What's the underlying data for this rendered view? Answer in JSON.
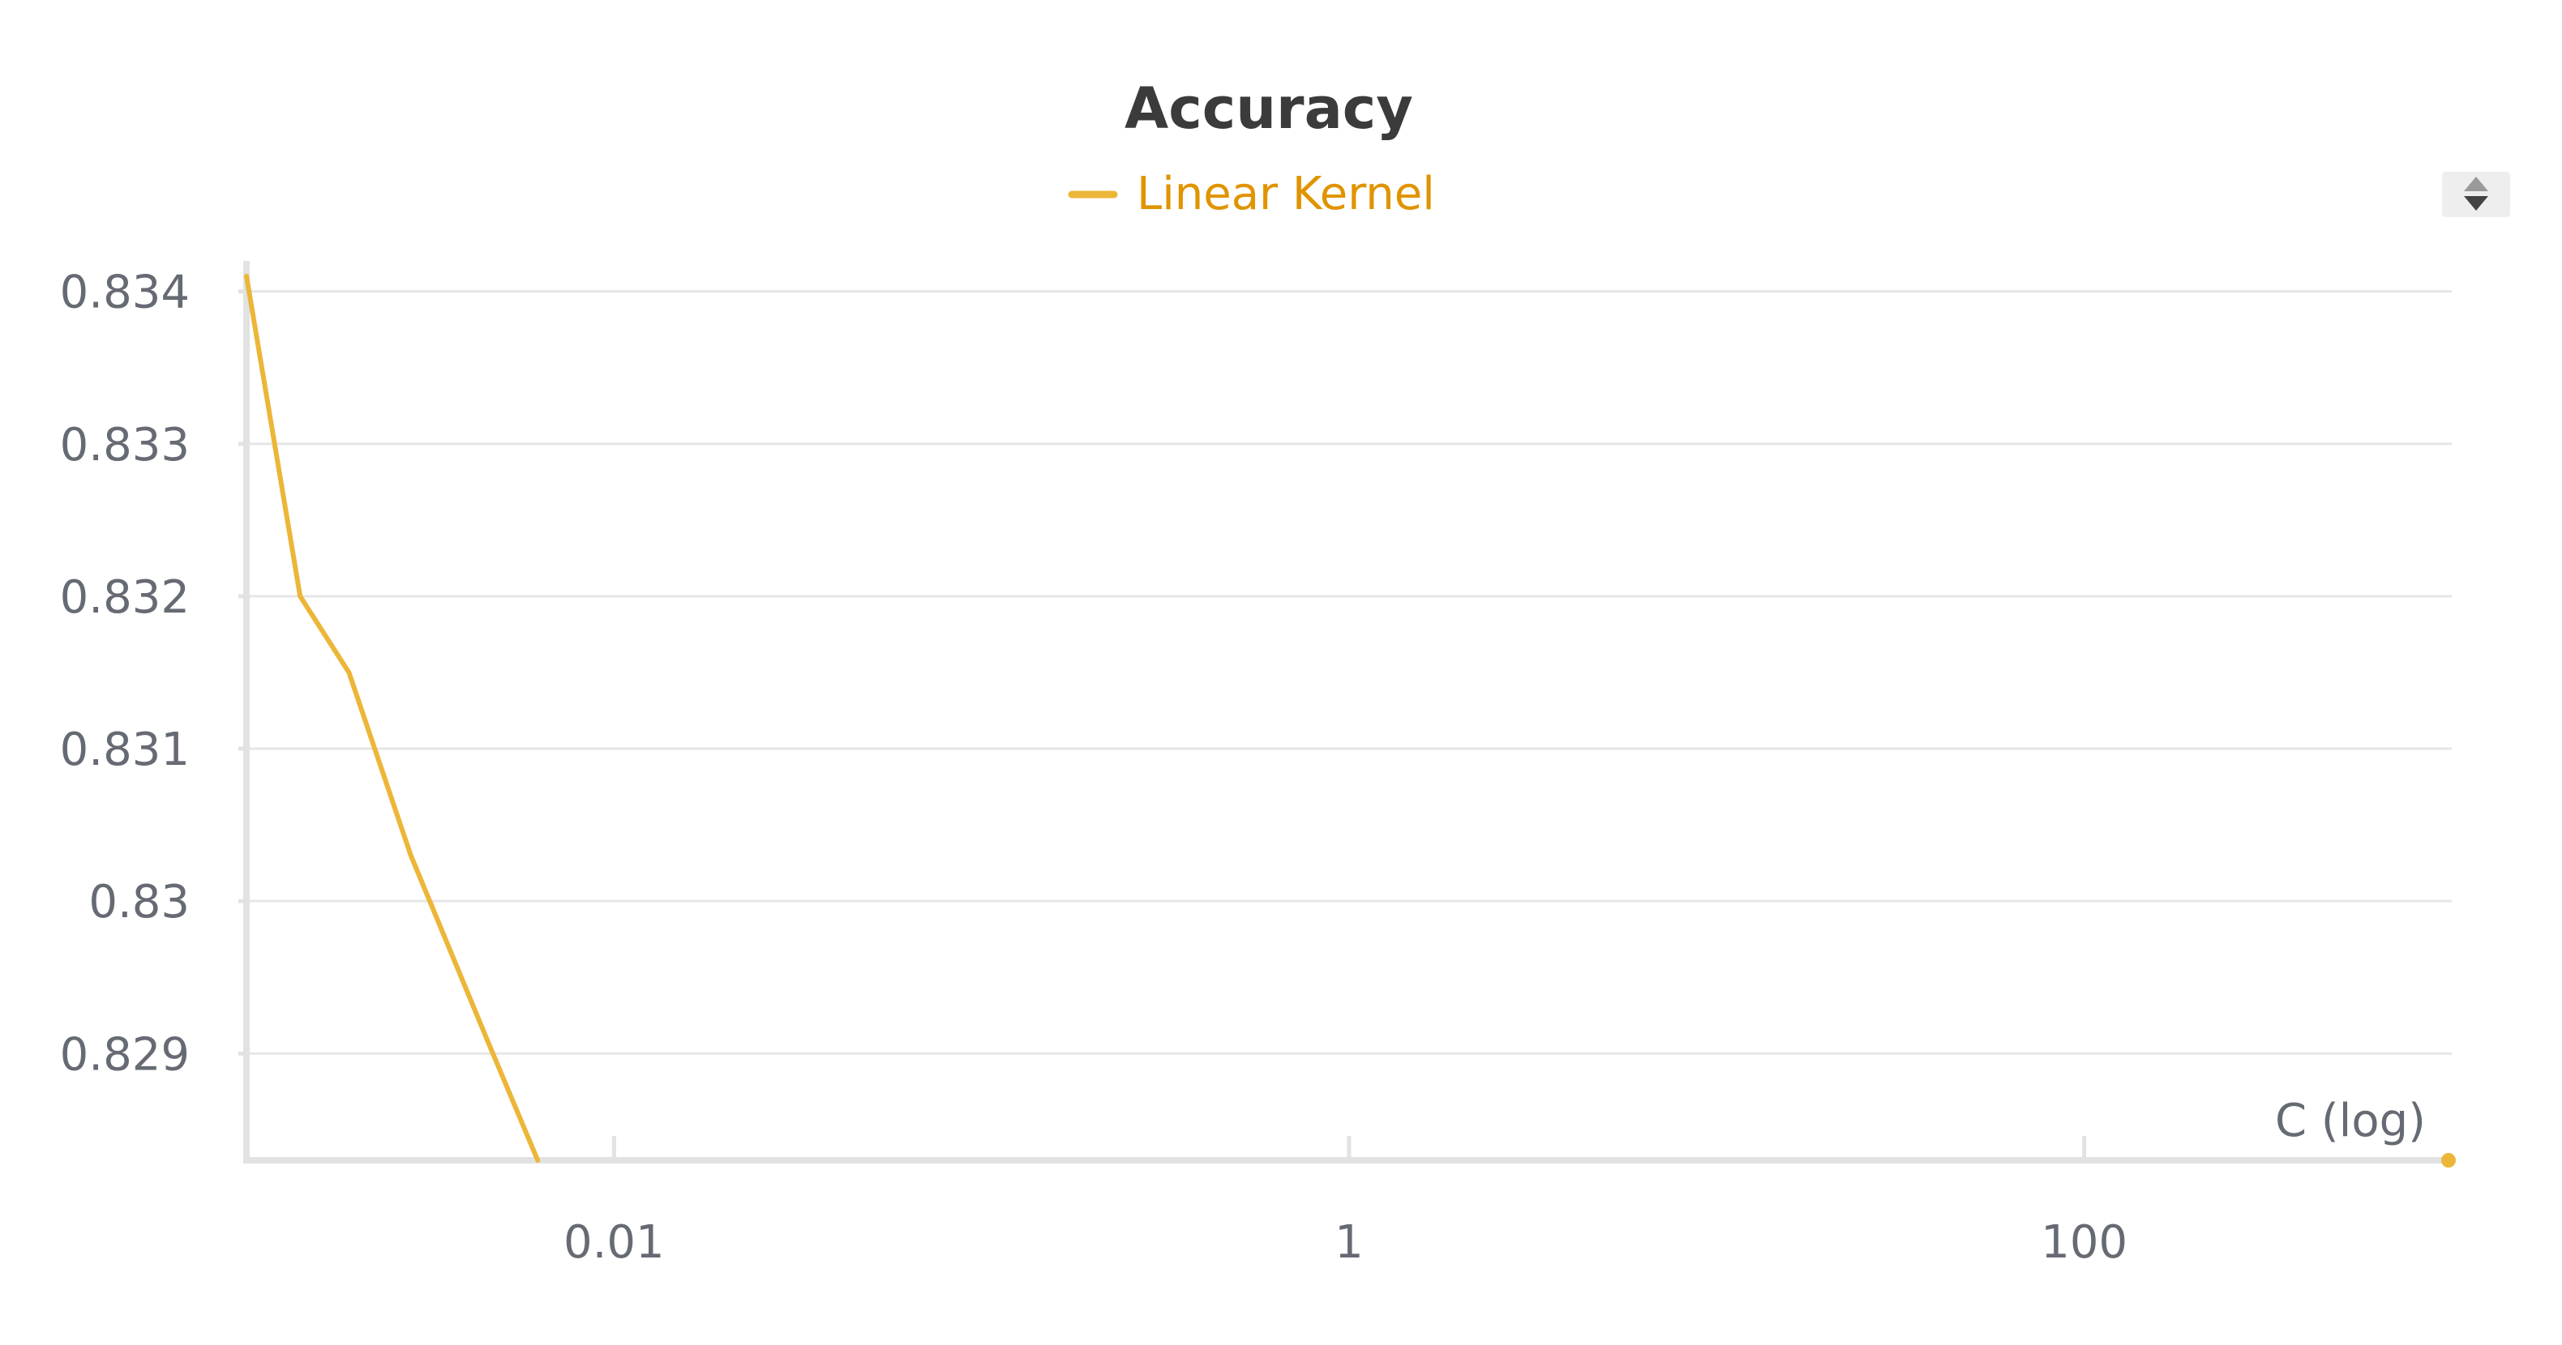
{
  "chart_data": {
    "type": "line",
    "title": "Accuracy",
    "xlabel": "C (log)",
    "ylabel": "",
    "x_scale": "log",
    "xlim": [
      0.001,
      1000
    ],
    "ylim": [
      0.8283,
      0.8342
    ],
    "x_ticks": [
      {
        "value": 0.01,
        "label": "0.01"
      },
      {
        "value": 1,
        "label": "1"
      },
      {
        "value": 100,
        "label": "100"
      }
    ],
    "y_ticks": [
      {
        "value": 0.829,
        "label": "0.829"
      },
      {
        "value": 0.83,
        "label": "0.83"
      },
      {
        "value": 0.831,
        "label": "0.831"
      },
      {
        "value": 0.832,
        "label": "0.832"
      },
      {
        "value": 0.833,
        "label": "0.833"
      },
      {
        "value": 0.834,
        "label": "0.834"
      }
    ],
    "grid": true,
    "legend_position": "top-center",
    "series": [
      {
        "name": "Linear Kernel",
        "color": "#ecb638",
        "x": [
          0.001,
          0.0014,
          0.0019,
          0.0028,
          0.0045,
          0.0062
        ],
        "y": [
          0.8341,
          0.832,
          0.8315,
          0.8303,
          0.8291,
          0.8283
        ]
      }
    ],
    "end_marker": {
      "x": 1000,
      "y": 0.8283
    }
  },
  "controls": {
    "legend_scroll": "legend-scroll-arrows"
  }
}
